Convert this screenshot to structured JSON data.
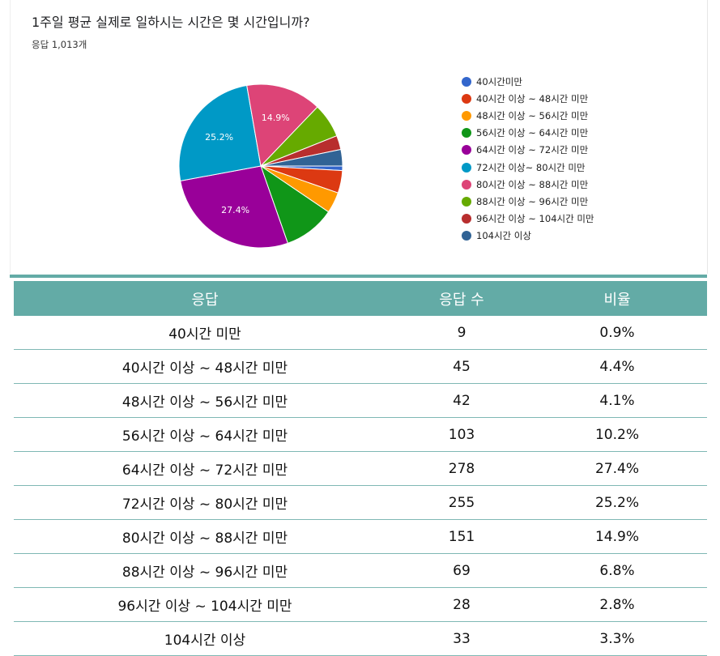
{
  "title": "1주일 평균 실제로 일하시는 시간은 몇 시간입니까?",
  "response_count": "응답 1,013개",
  "chart_data": {
    "type": "pie",
    "title": "1주일 평균 실제로 일하시는 시간은 몇 시간입니까?",
    "legend_position": "right",
    "start_angle": "3 o'clock, clockwise",
    "categories": [
      "40시간미만",
      "40시간 이상 ~ 48시간 미만",
      "48시간 이상 ~ 56시간 미만",
      "56시간 이상 ~ 64시간 미만",
      "64시간 이상 ~ 72시간 미만",
      "72시간 이상~ 80시간 미만",
      "80시간 이상 ~ 88시간 미만",
      "88시간 이상 ~ 96시간 미만",
      "96시간 이상 ~ 104시간 미만",
      "104시간 이상"
    ],
    "values": [
      9,
      45,
      42,
      103,
      278,
      255,
      151,
      69,
      28,
      33
    ],
    "colors": [
      "#3366cc",
      "#dc3912",
      "#ff9900",
      "#109618",
      "#990099",
      "#0099c6",
      "#dd4477",
      "#66aa00",
      "#b82e2e",
      "#316395"
    ],
    "slice_labels": [
      "",
      "",
      "",
      "",
      "27.4%",
      "25.2%",
      "14.9%",
      "",
      "",
      ""
    ]
  },
  "table": {
    "headers": [
      "응답",
      "응답 수",
      "비율"
    ],
    "rows": [
      [
        "40시간 미만",
        "9",
        "0.9%"
      ],
      [
        "40시간 이상 ~ 48시간 미만",
        "45",
        "4.4%"
      ],
      [
        "48시간 이상 ~ 56시간 미만",
        "42",
        "4.1%"
      ],
      [
        "56시간 이상 ~ 64시간 미만",
        "103",
        "10.2%"
      ],
      [
        "64시간 이상 ~ 72시간 미만",
        "278",
        "27.4%"
      ],
      [
        "72시간 이상 ~ 80시간 미만",
        "255",
        "25.2%"
      ],
      [
        "80시간 이상 ~ 88시간 미만",
        "151",
        "14.9%"
      ],
      [
        "88시간 이상 ~ 96시간 미만",
        "69",
        "6.8%"
      ],
      [
        "96시간 이상 ~ 104시간 미만",
        "28",
        "2.8%"
      ],
      [
        "104시간 이상",
        "33",
        "3.3%"
      ]
    ]
  }
}
